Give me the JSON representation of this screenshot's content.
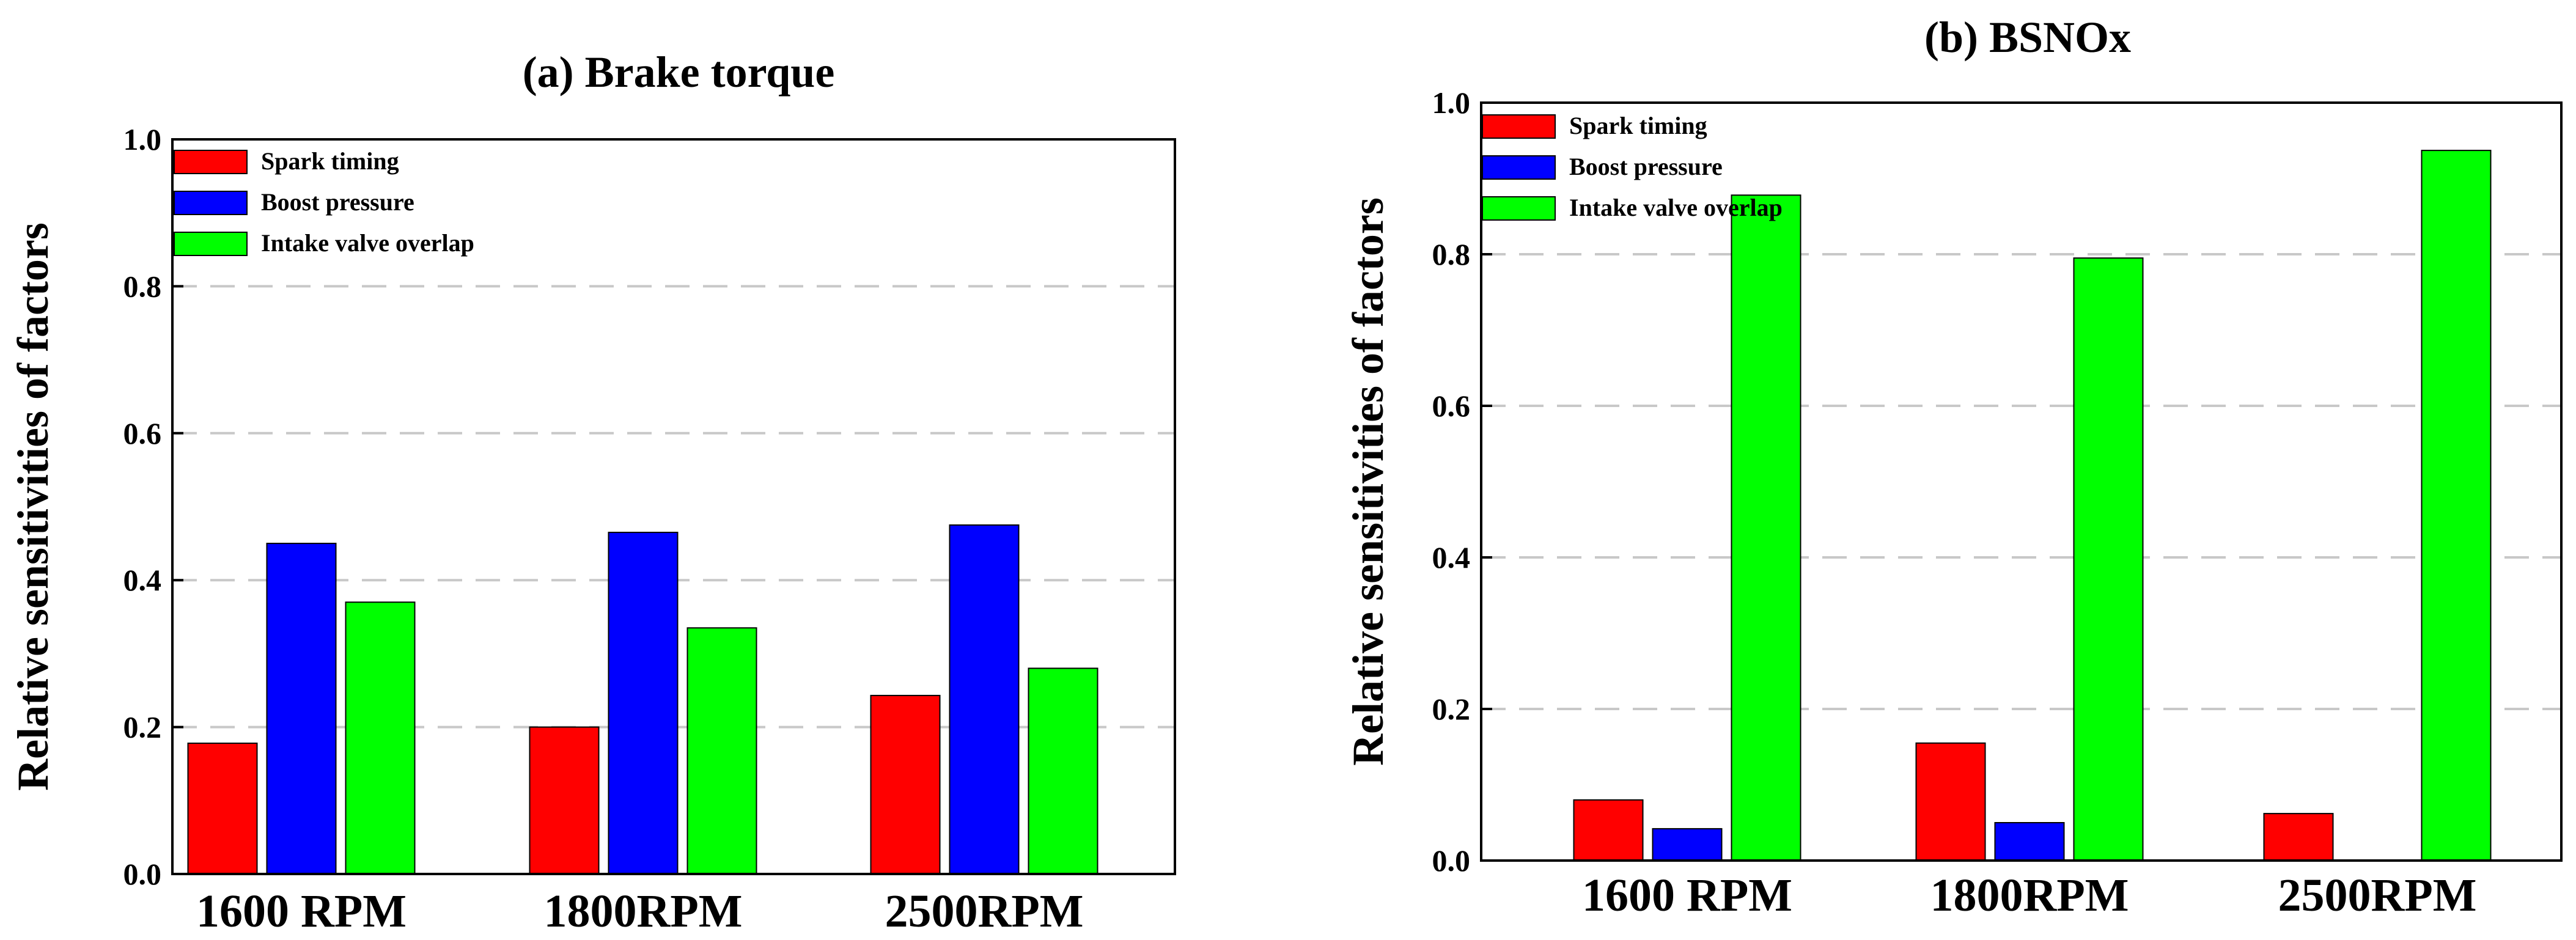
{
  "chart_data": [
    {
      "type": "bar",
      "title": "(a) Brake torque",
      "xlabel": "",
      "ylabel": "Relative sensitivities of factors",
      "ylim": [
        0,
        1.0
      ],
      "yticks": [
        "0.0",
        "0.2",
        "0.4",
        "0.6",
        "0.8",
        "1.0"
      ],
      "grid": "horizontal dashed",
      "legend_position": "top-left",
      "categories": [
        "1600 RPM",
        "1800RPM",
        "2500RPM"
      ],
      "series": [
        {
          "name": "Spark timing",
          "color": "#ff0000",
          "values": [
            0.178,
            0.2,
            0.243
          ]
        },
        {
          "name": "Boost pressure",
          "color": "#0000ff",
          "values": [
            0.45,
            0.465,
            0.475
          ]
        },
        {
          "name": "Intake valve overlap",
          "color": "#00ff00",
          "values": [
            0.37,
            0.335,
            0.28
          ]
        }
      ]
    },
    {
      "type": "bar",
      "title": "(b) BSNOx",
      "xlabel": "",
      "ylabel": "Relative sensitivities of factors",
      "ylim": [
        0,
        1.0
      ],
      "yticks": [
        "0.0",
        "0.2",
        "0.4",
        "0.6",
        "0.8",
        "1.0"
      ],
      "grid": "horizontal dashed",
      "legend_position": "top-left",
      "categories": [
        "1600 RPM",
        "1800RPM",
        "2500RPM"
      ],
      "series": [
        {
          "name": "Spark timing",
          "color": "#ff0000",
          "values": [
            0.08,
            0.155,
            0.062
          ]
        },
        {
          "name": "Boost pressure",
          "color": "#0000ff",
          "values": [
            0.042,
            0.05,
            0
          ]
        },
        {
          "name": "Intake valve overlap",
          "color": "#00ff00",
          "values": [
            0.878,
            0.795,
            0.937
          ]
        }
      ]
    }
  ]
}
